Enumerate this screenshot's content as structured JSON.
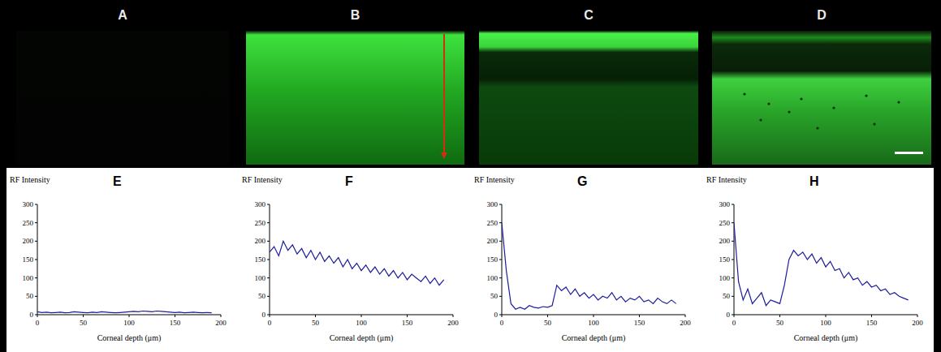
{
  "images": [
    {
      "label": "A"
    },
    {
      "label": "B"
    },
    {
      "label": "C"
    },
    {
      "label": "D"
    }
  ],
  "chart_data": [
    {
      "type": "line",
      "title": "E",
      "y_label": "RF Intensity",
      "x_label": "Corneal depth (μm)",
      "x": [
        0,
        5,
        10,
        15,
        20,
        25,
        30,
        35,
        40,
        45,
        50,
        55,
        60,
        65,
        70,
        75,
        80,
        85,
        90,
        95,
        100,
        105,
        110,
        115,
        120,
        125,
        130,
        135,
        140,
        145,
        150,
        155,
        160,
        165,
        170,
        175,
        180,
        185,
        190
      ],
      "values": [
        8,
        6,
        7,
        5,
        6,
        7,
        5,
        6,
        8,
        7,
        6,
        5,
        7,
        6,
        8,
        7,
        6,
        5,
        6,
        7,
        8,
        9,
        8,
        10,
        9,
        8,
        10,
        9,
        8,
        7,
        6,
        7,
        5,
        6,
        7,
        6,
        5,
        6,
        5
      ],
      "color": "#1c1c9c",
      "xlim": [
        0,
        200
      ],
      "xticks": [
        0,
        50,
        100,
        150,
        200
      ],
      "ylim": [
        0,
        300
      ],
      "yticks": [
        0,
        50,
        100,
        150,
        200,
        250,
        300
      ]
    },
    {
      "type": "line",
      "title": "F",
      "y_label": "RF Intensity",
      "x_label": "Corneal depth (μm)",
      "x": [
        0,
        5,
        10,
        15,
        20,
        25,
        30,
        35,
        40,
        45,
        50,
        55,
        60,
        65,
        70,
        75,
        80,
        85,
        90,
        95,
        100,
        105,
        110,
        115,
        120,
        125,
        130,
        135,
        140,
        145,
        150,
        155,
        160,
        165,
        170,
        175,
        180,
        185,
        190
      ],
      "values": [
        170,
        185,
        160,
        200,
        175,
        190,
        165,
        180,
        155,
        175,
        150,
        170,
        145,
        160,
        140,
        155,
        130,
        150,
        125,
        140,
        120,
        135,
        115,
        130,
        110,
        125,
        105,
        120,
        100,
        115,
        95,
        110,
        100,
        90,
        105,
        85,
        100,
        80,
        95
      ],
      "color": "#1c1c9c",
      "xlim": [
        0,
        200
      ],
      "xticks": [
        0,
        50,
        100,
        150,
        200
      ],
      "ylim": [
        0,
        300
      ],
      "yticks": [
        0,
        50,
        100,
        150,
        200,
        250,
        300
      ]
    },
    {
      "type": "line",
      "title": "G",
      "y_label": "RF Intensity",
      "x_label": "Corneal depth (μm)",
      "x": [
        0,
        5,
        10,
        15,
        20,
        25,
        30,
        35,
        40,
        45,
        50,
        55,
        60,
        65,
        70,
        75,
        80,
        85,
        90,
        95,
        100,
        105,
        110,
        115,
        120,
        125,
        130,
        135,
        140,
        145,
        150,
        155,
        160,
        165,
        170,
        175,
        180,
        185,
        190
      ],
      "values": [
        250,
        120,
        30,
        15,
        20,
        15,
        25,
        20,
        18,
        22,
        20,
        25,
        80,
        65,
        75,
        55,
        70,
        50,
        60,
        45,
        55,
        40,
        50,
        45,
        60,
        40,
        50,
        35,
        45,
        40,
        50,
        35,
        40,
        30,
        45,
        35,
        30,
        40,
        30
      ],
      "color": "#1c1c9c",
      "xlim": [
        0,
        200
      ],
      "xticks": [
        0,
        50,
        100,
        150,
        200
      ],
      "ylim": [
        0,
        300
      ],
      "yticks": [
        0,
        50,
        100,
        150,
        200,
        250,
        300
      ]
    },
    {
      "type": "line",
      "title": "H",
      "y_label": "RF Intensity",
      "x_label": "Corneal depth (μm)",
      "x": [
        0,
        5,
        10,
        15,
        20,
        25,
        30,
        35,
        40,
        45,
        50,
        55,
        60,
        65,
        70,
        75,
        80,
        85,
        90,
        95,
        100,
        105,
        110,
        115,
        120,
        125,
        130,
        135,
        140,
        145,
        150,
        155,
        160,
        165,
        170,
        175,
        180,
        185,
        190
      ],
      "values": [
        250,
        90,
        40,
        70,
        30,
        45,
        60,
        25,
        40,
        35,
        30,
        80,
        150,
        175,
        160,
        170,
        150,
        165,
        140,
        155,
        130,
        145,
        120,
        125,
        100,
        115,
        95,
        100,
        80,
        90,
        75,
        80,
        65,
        70,
        55,
        60,
        50,
        45,
        40
      ],
      "color": "#1c1c9c",
      "xlim": [
        0,
        200
      ],
      "xticks": [
        0,
        50,
        100,
        150,
        200
      ],
      "ylim": [
        0,
        300
      ],
      "yticks": [
        0,
        50,
        100,
        150,
        200,
        250,
        300
      ]
    }
  ]
}
